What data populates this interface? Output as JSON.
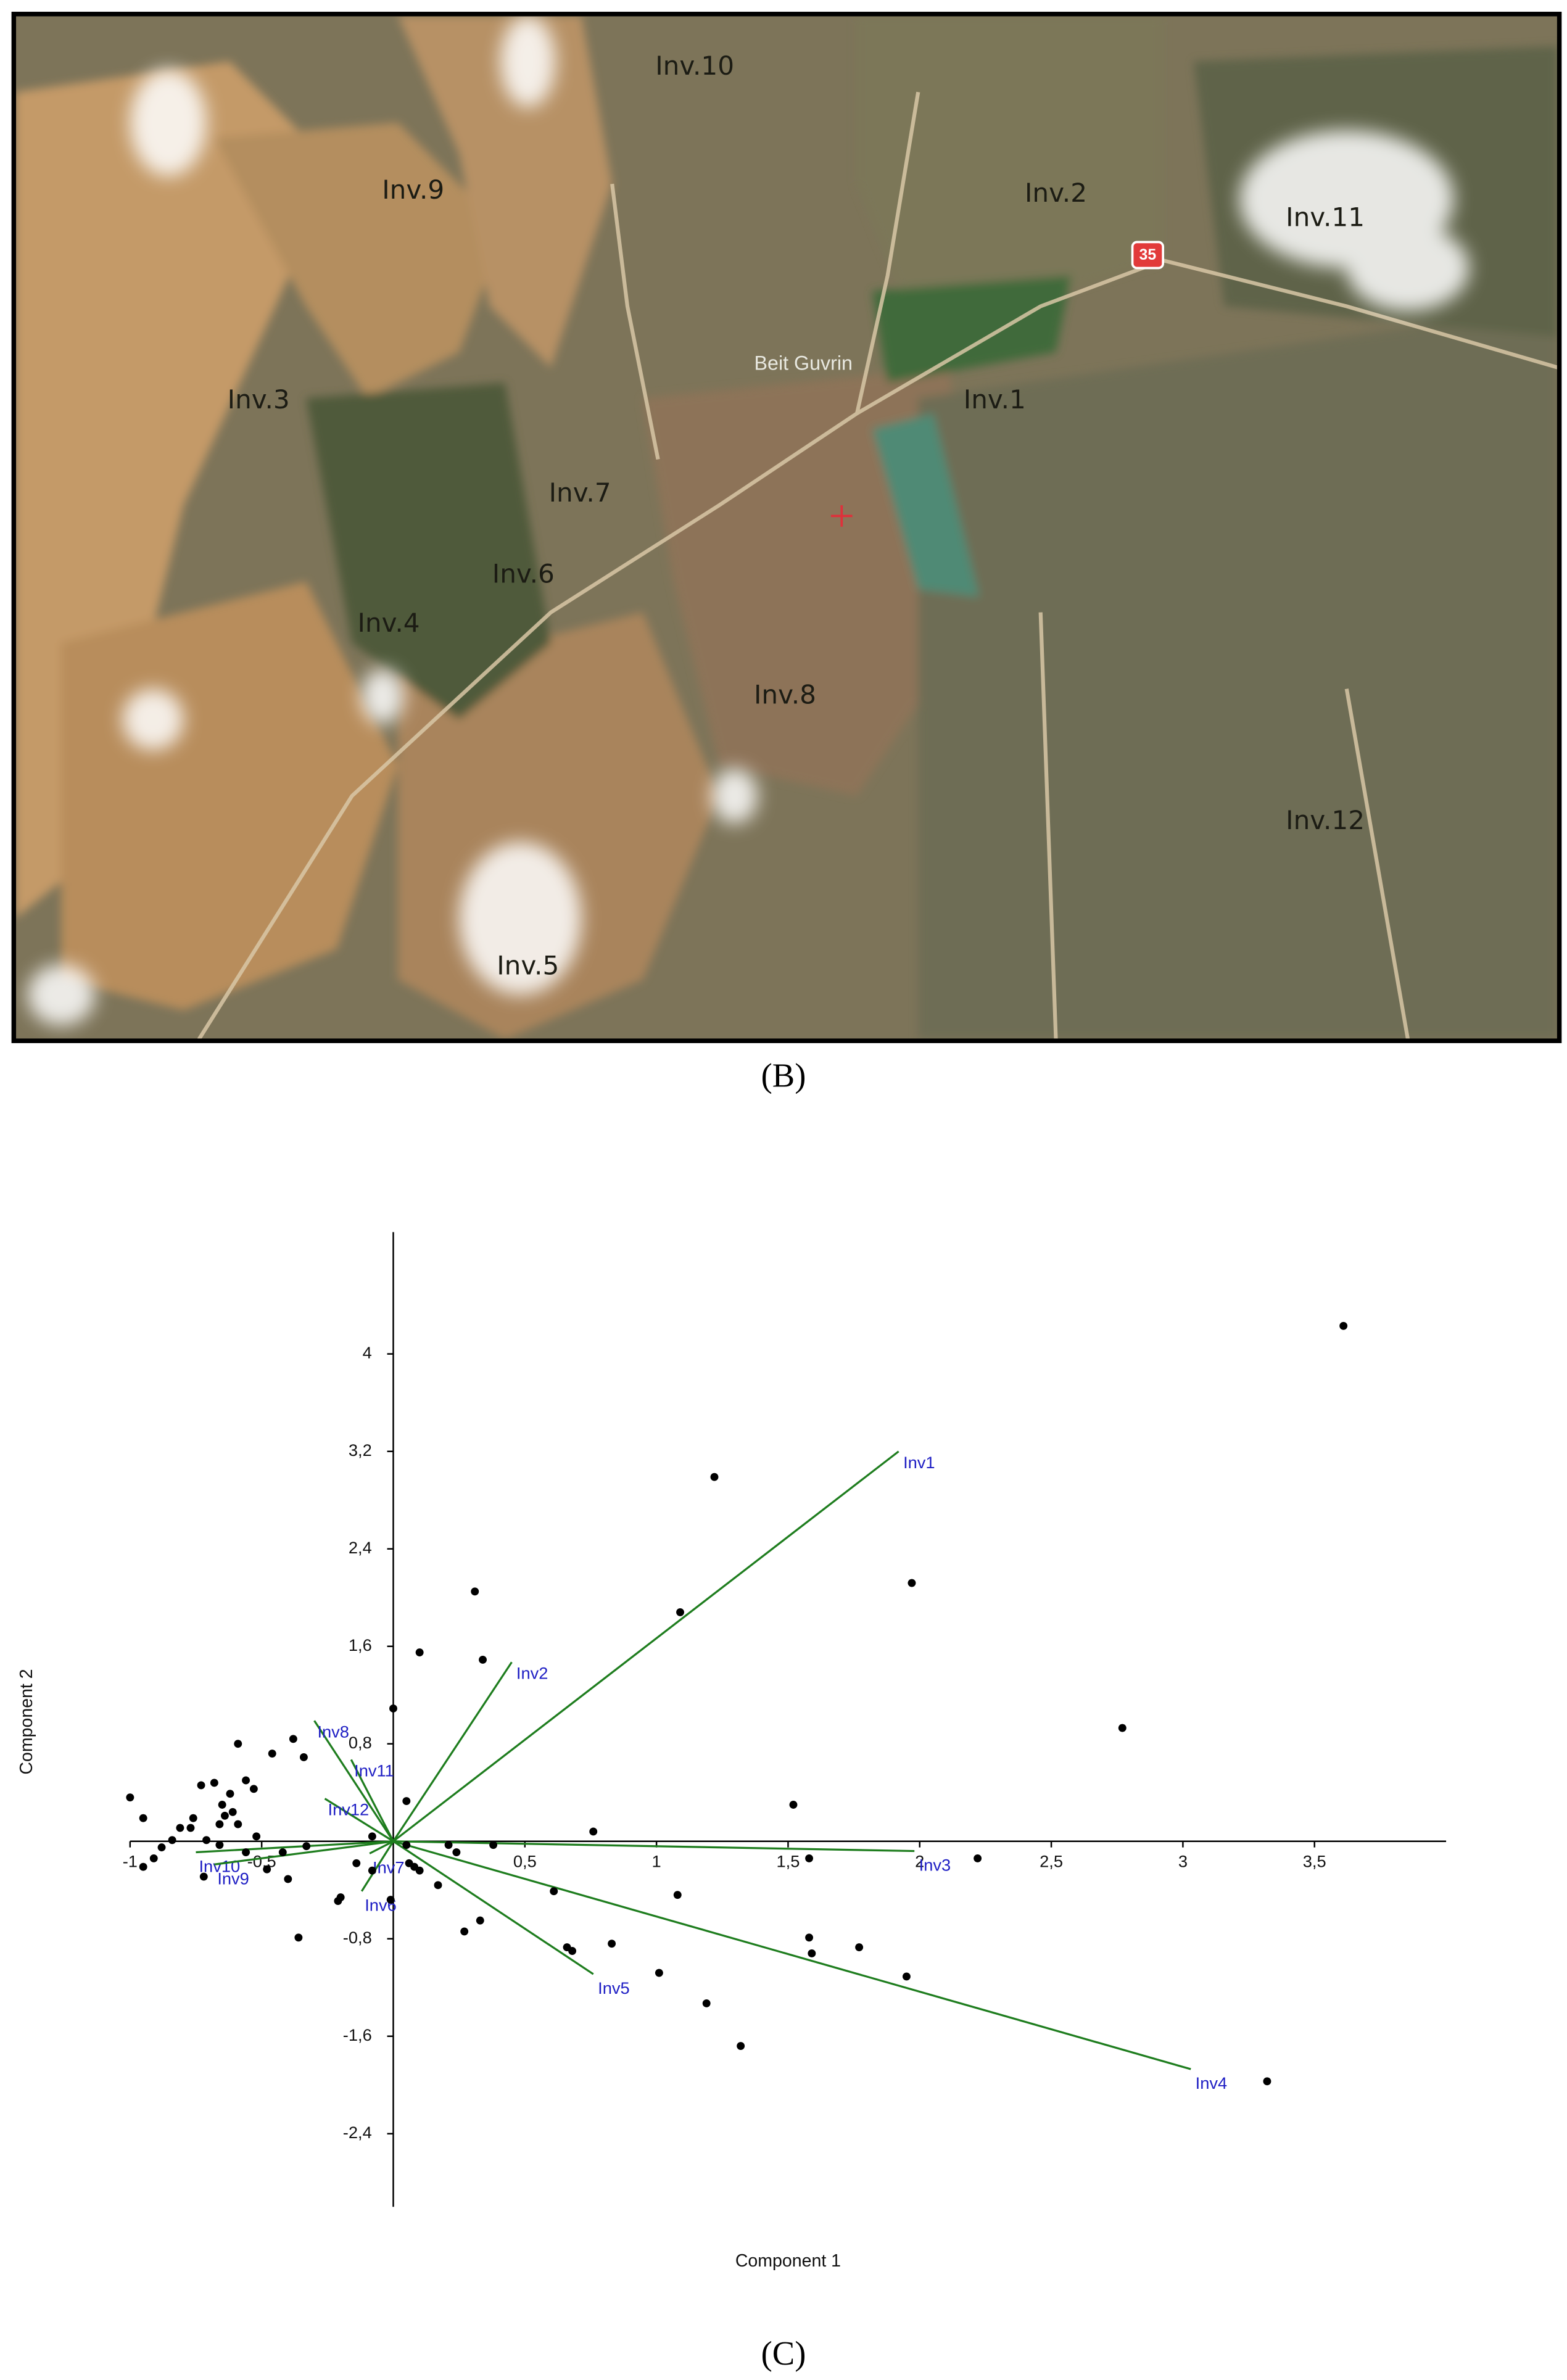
{
  "map": {
    "labels": [
      "Inv.10",
      "Inv.9",
      "Inv.2",
      "Inv.11",
      "Inv.3",
      "Inv.1",
      "Inv.7",
      "Inv.6",
      "Inv.4",
      "Inv.8",
      "Inv.12",
      "Inv.5"
    ],
    "place": "Beit Guvrin",
    "road_sign": "35",
    "caption": "(B)"
  },
  "chart_data": {
    "type": "biplot",
    "caption": "(C)",
    "x_label": "Component 1",
    "y_label": "Component 2",
    "xlim": [
      -1,
      4
    ],
    "ylim": [
      -3,
      5
    ],
    "xticks": [
      -1,
      {
        "value": -0.5,
        "label": "-0,5"
      },
      {
        "value": 0.5,
        "label": "0,5"
      },
      1,
      {
        "value": 1.5,
        "label": "1,5"
      },
      2,
      {
        "value": 2.5,
        "label": "2,5"
      },
      3,
      {
        "value": 3.5,
        "label": "3,5"
      }
    ],
    "yticks": [
      {
        "value": -2.4,
        "label": "-2,4"
      },
      {
        "value": -1.6,
        "label": "-1,6"
      },
      {
        "value": -0.8,
        "label": "-0,8"
      },
      {
        "value": 0.8,
        "label": "0,8"
      },
      {
        "value": 1.6,
        "label": "1,6"
      },
      {
        "value": 2.4,
        "label": "2,4"
      },
      {
        "value": 3.2,
        "label": "3,2"
      },
      4
    ],
    "points": {
      "color": "#000000",
      "x": [
        3.61,
        1.22,
        1.97,
        1.09,
        0.31,
        0.1,
        0.34,
        2.77,
        0.0,
        1.52,
        0.76,
        1.58,
        2.22,
        1.08,
        0.61,
        1.58,
        1.59,
        1.77,
        1.95,
        0.83,
        0.66,
        0.68,
        1.01,
        1.19,
        1.32,
        3.32,
        0.27,
        0.33,
        0.17,
        0.21,
        0.38,
        0.24,
        0.05,
        0.05,
        0.08,
        0.1,
        0.06,
        -0.01,
        -0.08,
        -0.14,
        -0.08,
        -0.2,
        -0.21,
        -0.36,
        -0.4,
        -0.48,
        -0.33,
        -0.34,
        -0.38,
        -0.46,
        -0.59,
        -0.56,
        -0.53,
        -0.68,
        -0.73,
        -0.62,
        -0.65,
        -0.61,
        -0.64,
        -0.66,
        -0.59,
        -0.77,
        -0.81,
        -0.76,
        -0.84,
        -0.88,
        -0.91,
        -0.95,
        -1.0,
        -0.95,
        -0.72,
        -0.66,
        -0.71,
        -0.56,
        -0.52,
        -0.42
      ],
      "y": [
        4.23,
        2.99,
        2.12,
        1.88,
        2.05,
        1.55,
        1.49,
        0.93,
        1.09,
        0.3,
        0.08,
        -0.14,
        -0.14,
        -0.44,
        -0.41,
        -0.79,
        -0.92,
        -0.87,
        -1.11,
        -0.84,
        -0.87,
        -0.9,
        -1.08,
        -1.33,
        -1.68,
        -1.97,
        -0.74,
        -0.65,
        -0.36,
        -0.03,
        -0.03,
        -0.09,
        -0.03,
        0.33,
        -0.21,
        -0.24,
        -0.18,
        -0.48,
        -0.24,
        -0.18,
        0.04,
        -0.46,
        -0.49,
        -0.79,
        -0.31,
        -0.23,
        -0.04,
        0.69,
        0.84,
        0.72,
        0.8,
        0.5,
        0.43,
        0.48,
        0.46,
        0.39,
        0.3,
        0.24,
        0.21,
        0.14,
        0.14,
        0.11,
        0.11,
        0.19,
        0.01,
        -0.05,
        -0.14,
        0.19,
        0.36,
        -0.21,
        -0.29,
        -0.03,
        0.01,
        -0.09,
        0.04,
        -0.09
      ]
    },
    "loadings": {
      "color": "#1e7d1e",
      "label_color": "#1f1fc4",
      "vectors": [
        {
          "name": "Inv1",
          "x": 1.92,
          "y": 3.2
        },
        {
          "name": "Inv2",
          "x": 0.45,
          "y": 1.47
        },
        {
          "name": "Inv8",
          "x": -0.3,
          "y": 0.99
        },
        {
          "name": "Inv11",
          "x": -0.16,
          "y": 0.67
        },
        {
          "name": "Inv12",
          "x": -0.26,
          "y": 0.35
        },
        {
          "name": "Inv3",
          "x": 1.98,
          "y": -0.08
        },
        {
          "name": "Inv7",
          "x": -0.09,
          "y": -0.1
        },
        {
          "name": "Inv6",
          "x": -0.12,
          "y": -0.41
        },
        {
          "name": "Inv5",
          "x": 0.76,
          "y": -1.09
        },
        {
          "name": "Inv4",
          "x": 3.03,
          "y": -1.87
        },
        {
          "name": "Inv10",
          "x": -0.75,
          "y": -0.09
        },
        {
          "name": "Inv9",
          "x": -0.68,
          "y": -0.19
        }
      ]
    }
  }
}
